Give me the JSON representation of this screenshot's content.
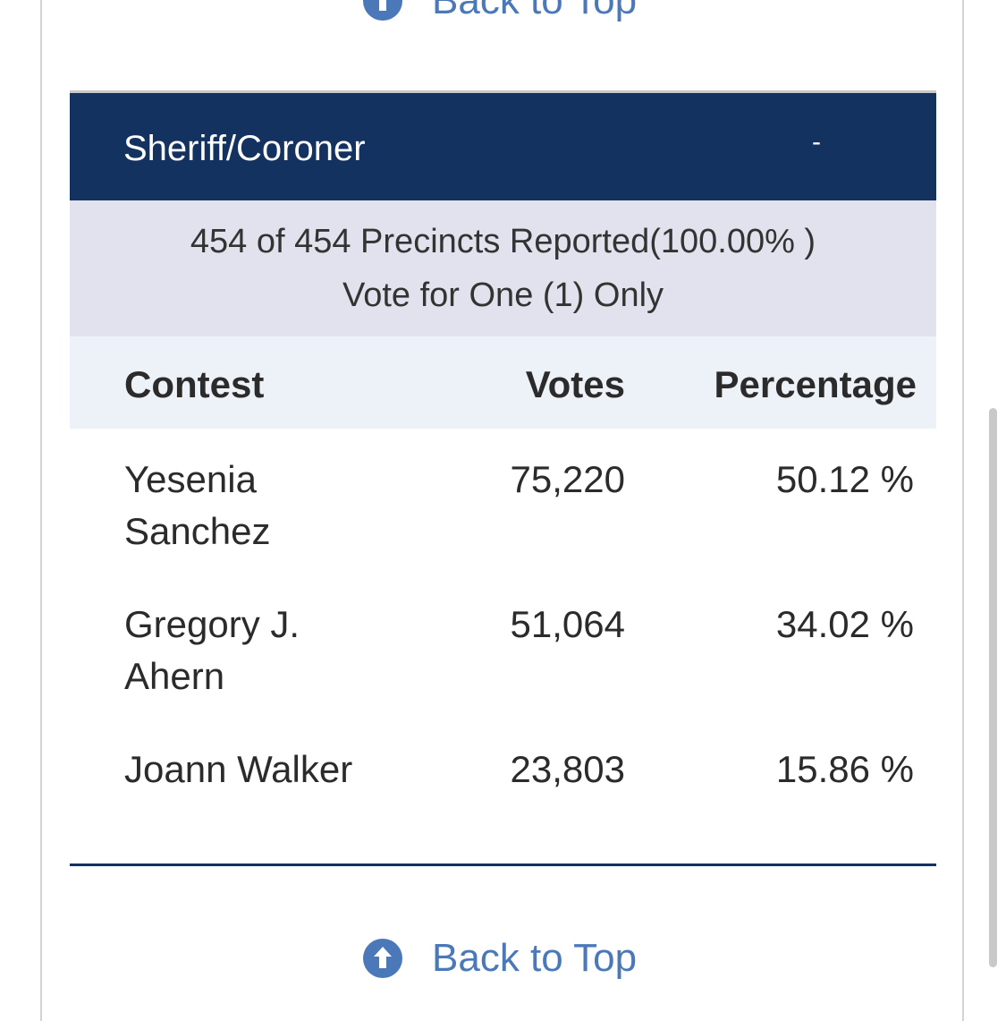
{
  "back_to_top": {
    "label": "Back to Top"
  },
  "contest": {
    "title": "Sheriff/Coroner",
    "toggle": "-",
    "precincts": "454 of 454 Precincts Reported(100.00% )",
    "vote_rule": "Vote for One (1) Only"
  },
  "table": {
    "headers": {
      "contest": "Contest",
      "votes": "Votes",
      "percentage": "Percentage"
    },
    "rows": [
      {
        "name": "Yesenia Sanchez",
        "votes": "75,220",
        "percentage": "50.12 %"
      },
      {
        "name": "Gregory J. Ahern",
        "votes": "51,064",
        "percentage": "34.02 %"
      },
      {
        "name": "Joann Walker",
        "votes": "23,803",
        "percentage": "15.86 %"
      }
    ]
  },
  "colors": {
    "header_bg": "#14325f",
    "info_bg": "#e2e2ee",
    "column_header_bg": "#edf1f8",
    "link": "#4a78b8"
  },
  "icons": {
    "back_to_top": "arrow-up-circle-icon"
  }
}
